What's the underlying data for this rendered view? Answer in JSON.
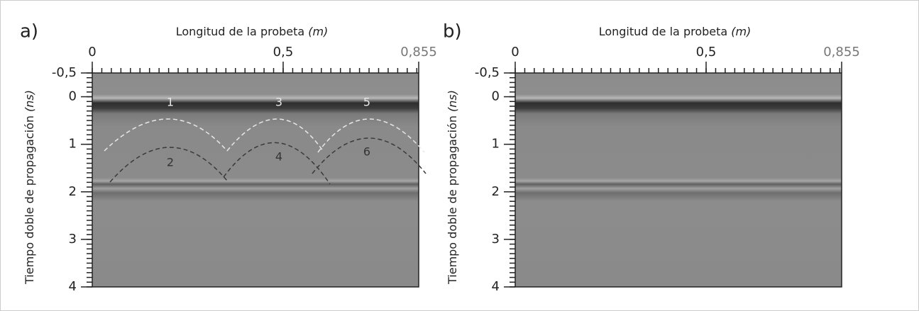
{
  "chart_data": [
    {
      "type": "radargram",
      "panel_label": "a)",
      "xlabel": "Longitud de la probeta",
      "xunit": "(m)",
      "ylabel": "Tiempo doble de propagación",
      "yunit": "(ns)",
      "xlim": [
        0,
        0.855
      ],
      "xticks": [
        0,
        {
          "value": 0.5,
          "label": "0,5"
        },
        {
          "value": 0.855,
          "label": "0,855"
        }
      ],
      "xminor_step": 0.025,
      "ylim": [
        -0.5,
        4
      ],
      "y_inverted": true,
      "yticks": [
        {
          "value": -0.5,
          "label": "-0,5"
        },
        0,
        1,
        2,
        3,
        4
      ],
      "yminor_step": 0.1,
      "annotations": [
        "1",
        "2",
        "3",
        "4",
        "5",
        "6"
      ]
    },
    {
      "type": "radargram",
      "panel_label": "b)",
      "xlabel": "Longitud de la probeta",
      "xunit": "(m)",
      "ylabel": "Tiempo doble de propagación",
      "yunit": "(ns)",
      "xlim": [
        0,
        0.855
      ],
      "xticks": [
        0,
        {
          "value": 0.5,
          "label": "0,5"
        },
        {
          "value": 0.855,
          "label": "0,855"
        }
      ],
      "xminor_step": 0.025,
      "ylim": [
        -0.5,
        4
      ],
      "y_inverted": true,
      "yticks": [
        {
          "value": -0.5,
          "label": "-0,5"
        },
        0,
        1,
        2,
        3,
        4
      ],
      "yminor_step": 0.1
    }
  ]
}
